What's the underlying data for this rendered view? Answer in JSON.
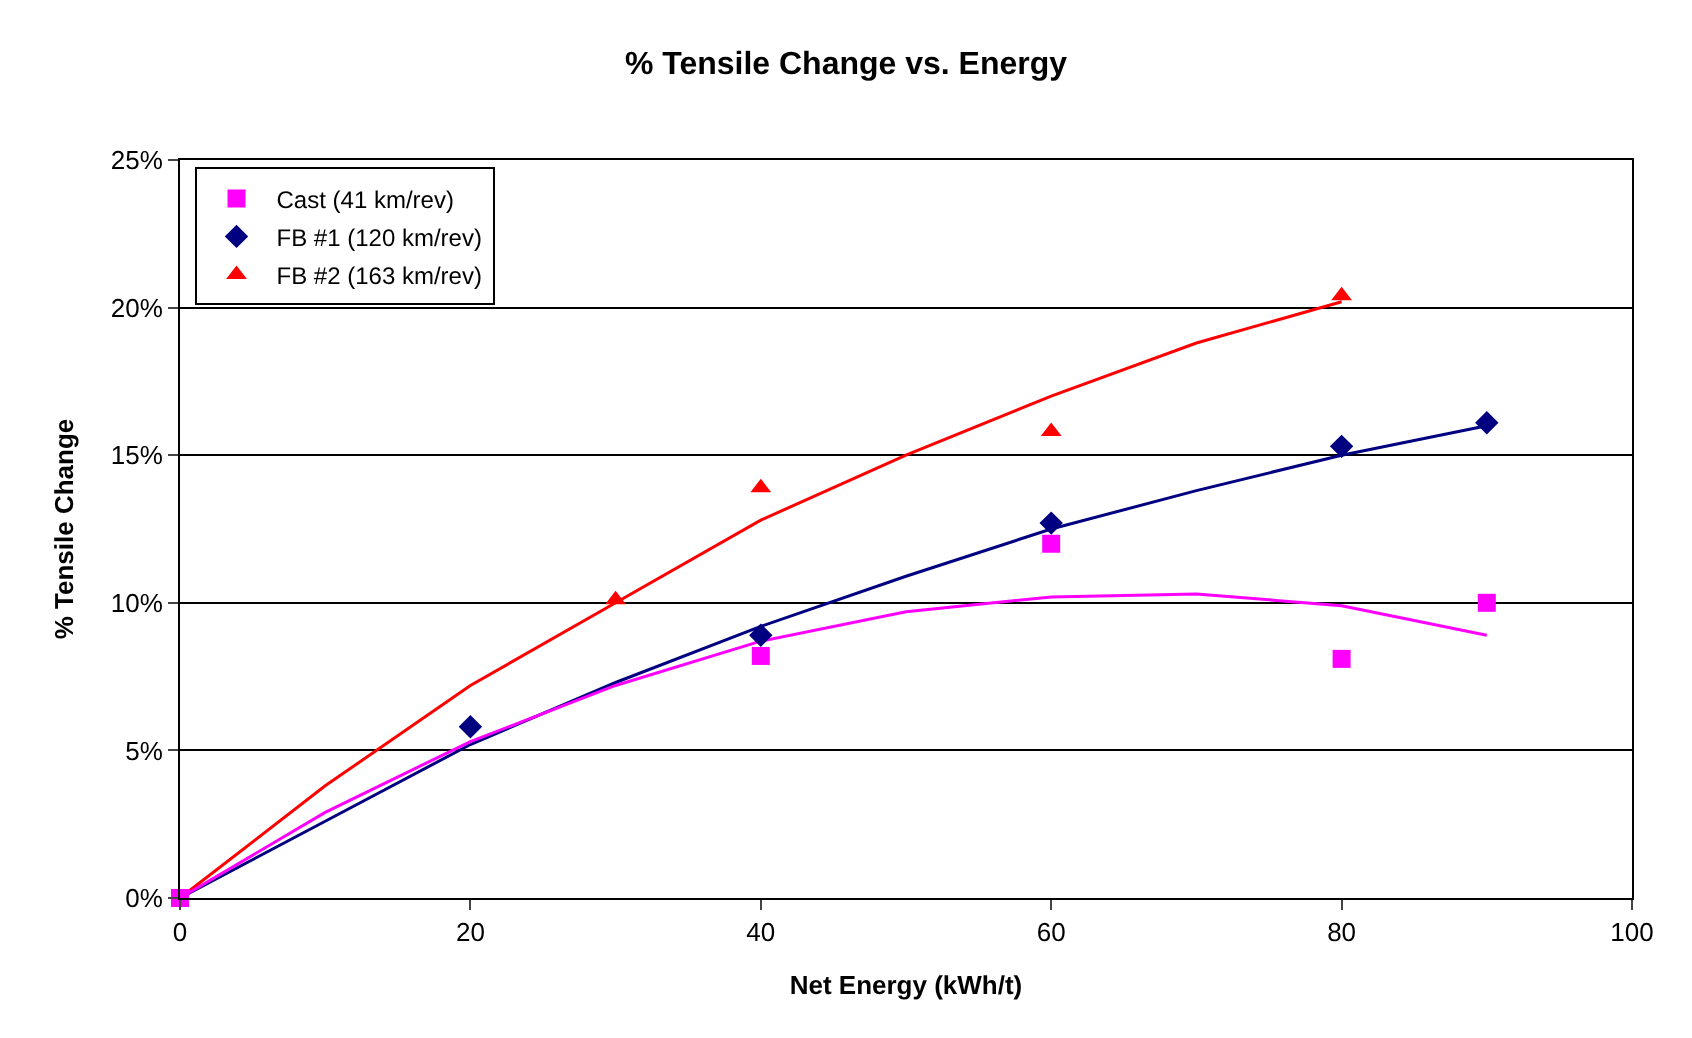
{
  "chart_data": {
    "type": "scatter",
    "title": "% Tensile Change vs. Energy",
    "xlabel": "Net Energy (kWh/t)",
    "ylabel": "% Tensile Change",
    "xlim": [
      0,
      100
    ],
    "xticks": [
      0,
      20,
      40,
      60,
      80,
      100
    ],
    "ylim": [
      0,
      25
    ],
    "yticks": [
      {
        "value": 0,
        "label": "0%"
      },
      {
        "value": 5,
        "label": "5%"
      },
      {
        "value": 10,
        "label": "10%"
      },
      {
        "value": 15,
        "label": "15%"
      },
      {
        "value": 20,
        "label": "20%"
      },
      {
        "value": 25,
        "label": "25%"
      }
    ],
    "grid": "y",
    "legend": "top left",
    "series": [
      {
        "name": "Cast (41 km/rev)",
        "color": "#ff00ff",
        "marker": "square",
        "x": [
          0,
          40,
          60,
          80,
          90
        ],
        "values": [
          0,
          8.2,
          12,
          8.1,
          10
        ]
      },
      {
        "name": "FB #1 (120 km/rev)",
        "color": "#000080",
        "marker": "diamond",
        "x": [
          20,
          40,
          60,
          80,
          90
        ],
        "values": [
          5.8,
          8.9,
          12.7,
          15.3,
          16.1
        ]
      },
      {
        "name": "FB #2 (163 km/rev)",
        "color": "#ff0000",
        "marker": "triangle",
        "x": [
          30,
          40,
          60,
          80
        ],
        "values": [
          10.1,
          13.9,
          15.8,
          20.4
        ]
      },
      {
        "type": "line",
        "color": "#ff00ff",
        "marker": "none",
        "x": [
          0,
          10,
          20,
          30,
          40,
          50,
          60,
          70,
          80,
          90
        ],
        "values": [
          0,
          2.9,
          5.3,
          7.2,
          8.7,
          9.7,
          10.2,
          10.3,
          9.9,
          8.9
        ]
      },
      {
        "type": "line",
        "color": "#000080",
        "marker": "none",
        "x": [
          0,
          10,
          20,
          30,
          40,
          50,
          60,
          70,
          80,
          90
        ],
        "values": [
          0,
          2.6,
          5.2,
          7.3,
          9.2,
          10.9,
          12.5,
          13.8,
          15.0,
          16.0
        ]
      },
      {
        "type": "line",
        "color": "#ff0000",
        "marker": "none",
        "x": [
          0,
          10,
          20,
          30,
          40,
          50,
          60,
          70,
          80
        ],
        "values": [
          0,
          3.8,
          7.2,
          10.0,
          12.8,
          15.0,
          17.0,
          18.8,
          20.2
        ]
      }
    ]
  }
}
